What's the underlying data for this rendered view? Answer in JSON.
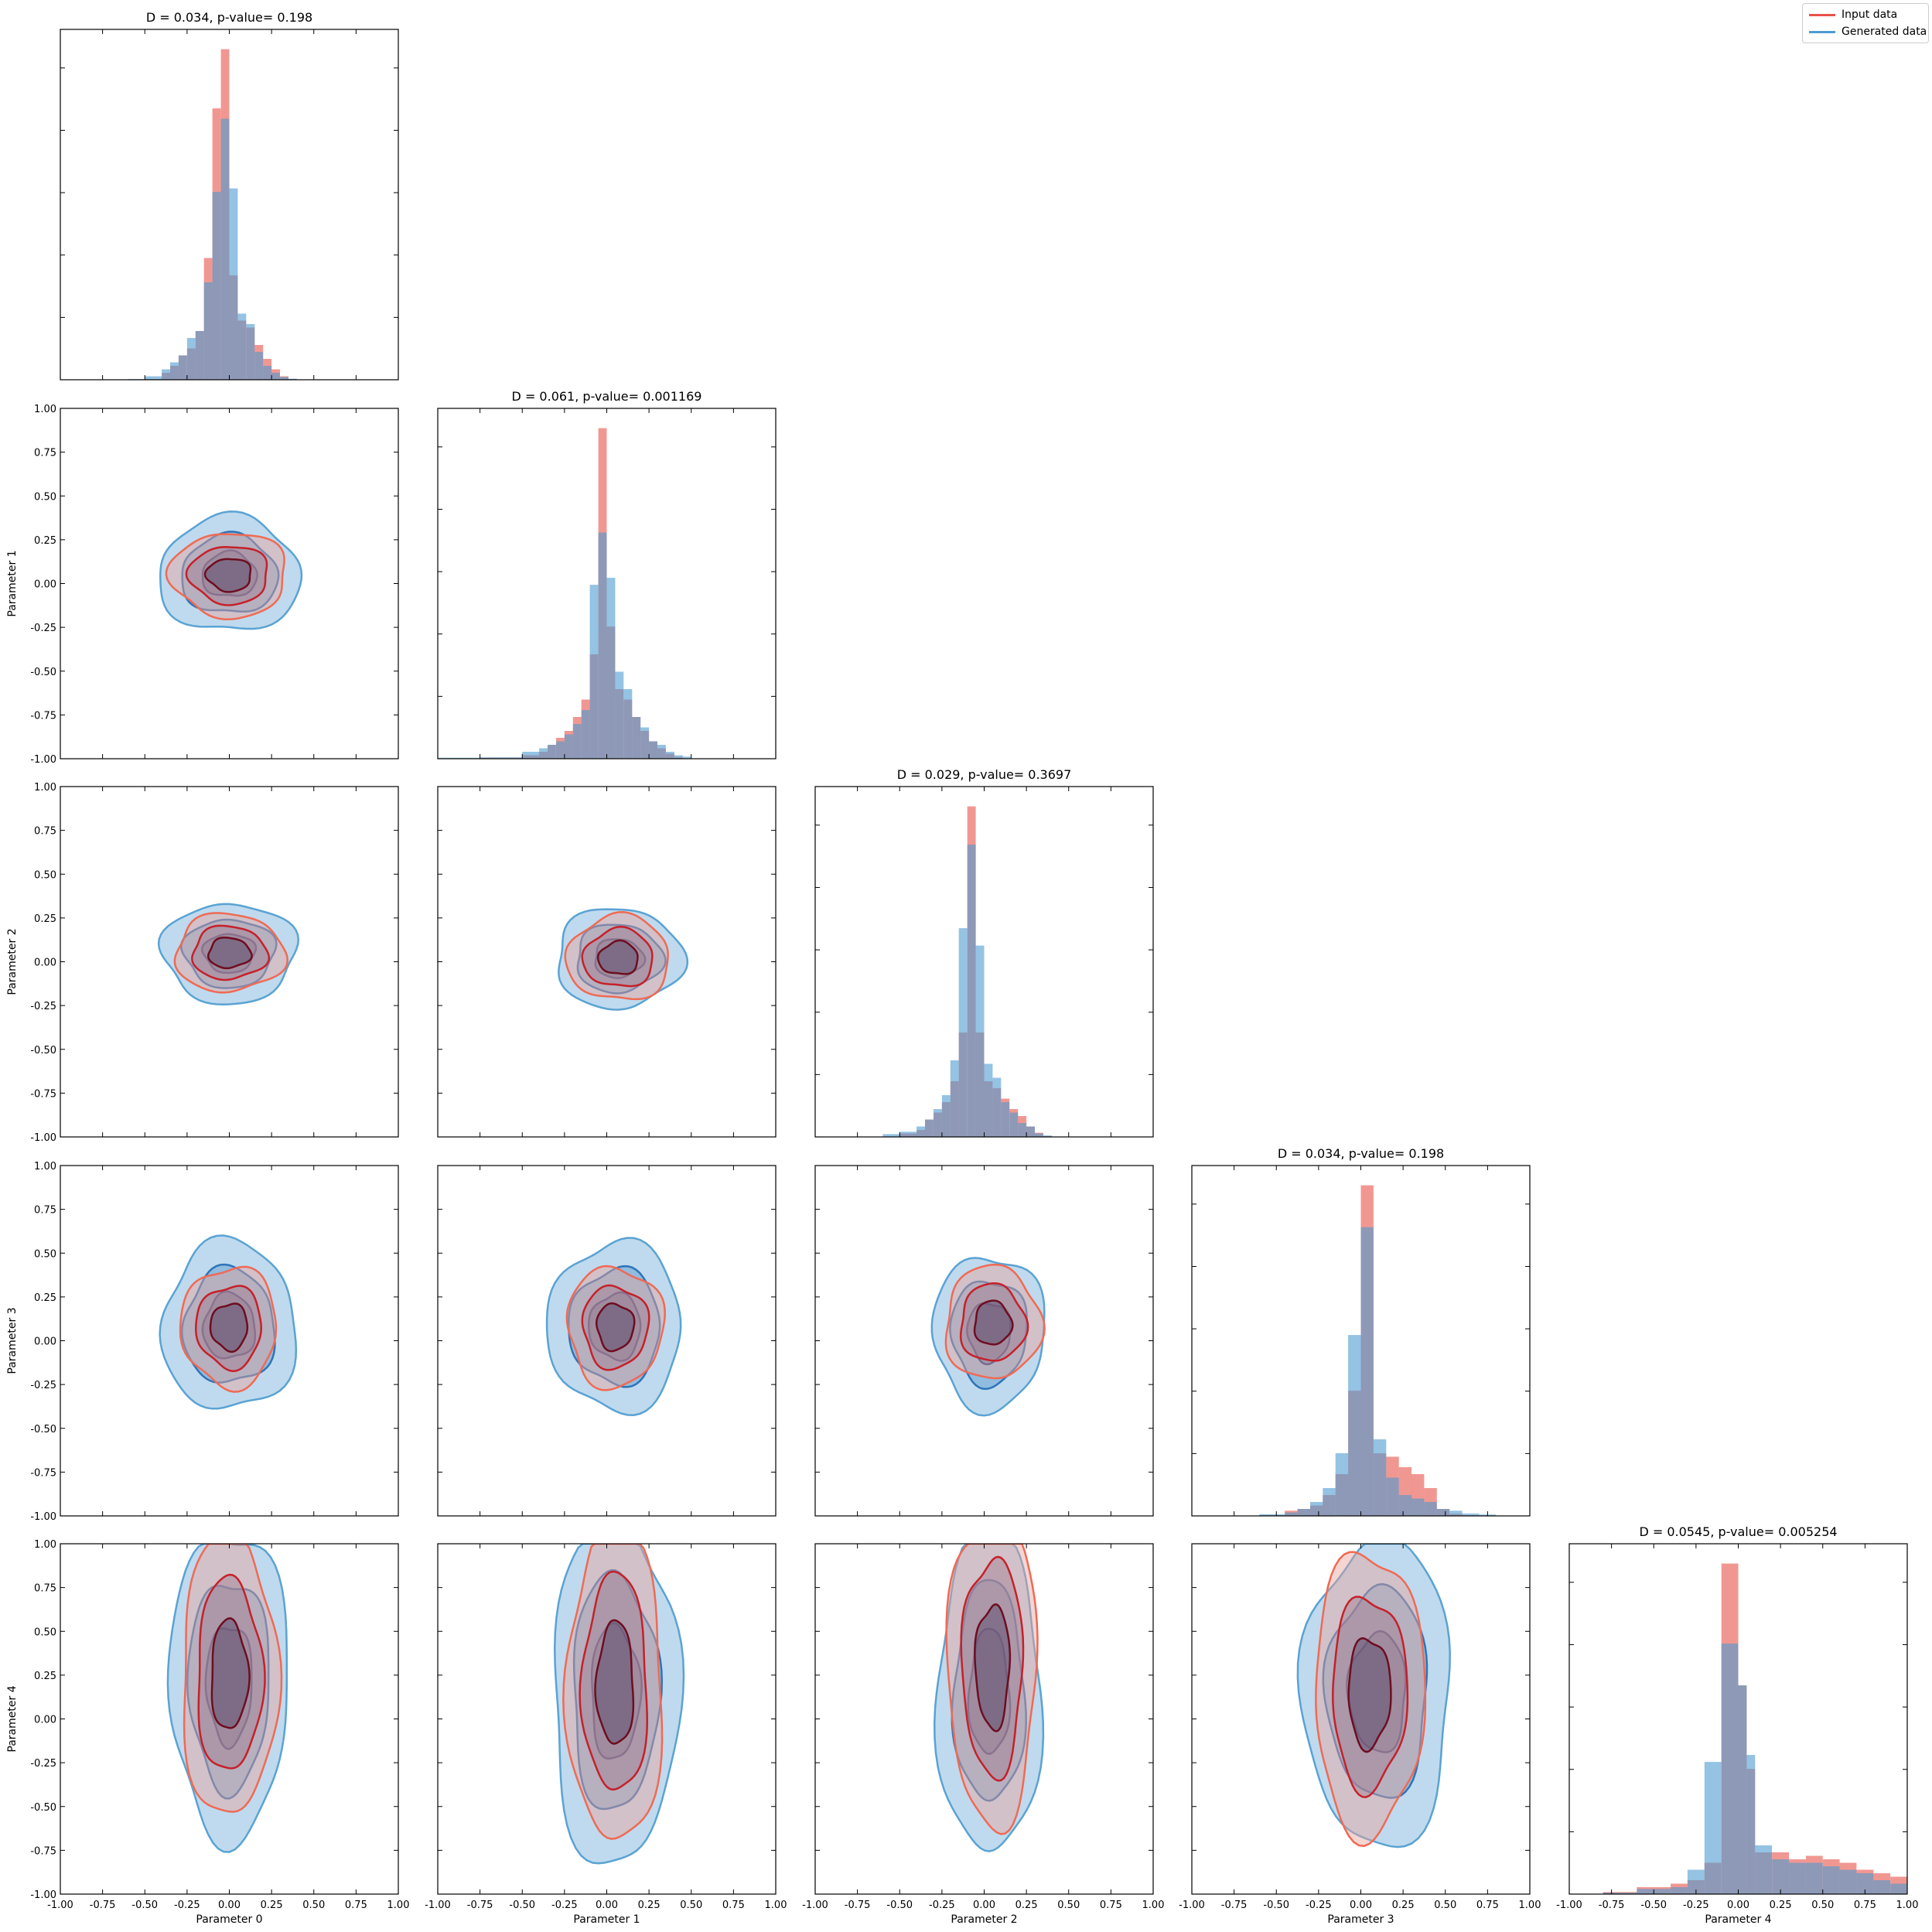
{
  "legend": {
    "input_label": "Input data",
    "generated_label": "Generated data"
  },
  "colors": {
    "input": "#e8514a",
    "input_fill": "#e88a86",
    "generated": "#4d9bd1",
    "generated_fill": "#7fb6dc",
    "overlap": "#85779a"
  },
  "axis": {
    "range": [
      -1.0,
      1.0
    ],
    "ticks": [
      "-1.00",
      "-0.75",
      "-0.50",
      "-0.25",
      "0.00",
      "0.25",
      "0.50",
      "0.75",
      "1.00"
    ]
  },
  "chart_data": {
    "type": "corner",
    "parameters": [
      "Parameter 0",
      "Parameter 1",
      "Parameter 2",
      "Parameter 3",
      "Parameter 4"
    ],
    "diagonal": [
      {
        "title": "D = 0.034, p-value= 0.198",
        "type": "bar",
        "bin_edges": [
          -0.6,
          -0.5,
          -0.4,
          -0.35,
          -0.3,
          -0.25,
          -0.2,
          -0.15,
          -0.1,
          -0.05,
          0.0,
          0.05,
          0.1,
          0.15,
          0.2,
          0.25,
          0.3,
          0.35,
          0.4,
          0.45,
          0.5,
          0.6,
          0.7
        ],
        "series": [
          {
            "name": "Input data",
            "values": [
              0.0,
              0.002,
              0.02,
              0.04,
              0.07,
              0.09,
              0.14,
              0.35,
              0.78,
              0.95,
              0.3,
              0.17,
              0.15,
              0.1,
              0.06,
              0.03,
              0.01,
              0.002,
              0.0,
              0.0,
              0.0,
              0.0
            ]
          },
          {
            "name": "Generated data",
            "values": [
              0.002,
              0.01,
              0.03,
              0.05,
              0.07,
              0.12,
              0.14,
              0.28,
              0.54,
              0.75,
              0.55,
              0.19,
              0.16,
              0.08,
              0.04,
              0.02,
              0.008,
              0.003,
              0.001,
              0.0,
              0.001,
              0.0
            ]
          }
        ]
      },
      {
        "title": "D = 0.061, p-value= 0.001169",
        "type": "bar",
        "bin_edges": [
          -1.0,
          -0.75,
          -0.5,
          -0.4,
          -0.35,
          -0.3,
          -0.25,
          -0.2,
          -0.15,
          -0.1,
          -0.05,
          0.0,
          0.05,
          0.1,
          0.15,
          0.2,
          0.25,
          0.3,
          0.35,
          0.4,
          0.45,
          0.5,
          0.6
        ],
        "series": [
          {
            "name": "Input data",
            "values": [
              0.0,
              0.003,
              0.01,
              0.02,
              0.04,
              0.06,
              0.08,
              0.12,
              0.17,
              0.3,
              0.95,
              0.38,
              0.2,
              0.17,
              0.12,
              0.08,
              0.05,
              0.03,
              0.015,
              0.005,
              0.0,
              0.0
            ]
          },
          {
            "name": "Generated data",
            "values": [
              0.003,
              0.004,
              0.02,
              0.03,
              0.04,
              0.05,
              0.07,
              0.1,
              0.14,
              0.5,
              0.65,
              0.52,
              0.25,
              0.2,
              0.12,
              0.09,
              0.05,
              0.04,
              0.02,
              0.01,
              0.006,
              0.0
            ]
          }
        ]
      },
      {
        "title": "D = 0.029, p-value= 0.3697",
        "type": "bar",
        "bin_edges": [
          -0.6,
          -0.5,
          -0.4,
          -0.35,
          -0.3,
          -0.25,
          -0.2,
          -0.15,
          -0.1,
          -0.05,
          0.0,
          0.05,
          0.1,
          0.15,
          0.2,
          0.25,
          0.3,
          0.35,
          0.4,
          0.45,
          0.5,
          0.6
        ],
        "series": [
          {
            "name": "Input data",
            "values": [
              0.0,
              0.01,
              0.02,
              0.05,
              0.07,
              0.1,
              0.16,
              0.3,
              0.95,
              0.3,
              0.16,
              0.14,
              0.11,
              0.08,
              0.06,
              0.03,
              0.012,
              0.003,
              0.0,
              0.0,
              0.0
            ]
          },
          {
            "name": "Generated data",
            "values": [
              0.008,
              0.015,
              0.03,
              0.05,
              0.08,
              0.12,
              0.22,
              0.6,
              0.84,
              0.55,
              0.21,
              0.17,
              0.1,
              0.07,
              0.04,
              0.03,
              0.01,
              0.004,
              0.0,
              0.0,
              0.0
            ]
          }
        ]
      },
      {
        "title": "D = 0.034, p-value= 0.198",
        "type": "bar",
        "bin_edges": [
          -0.6,
          -0.45,
          -0.375,
          -0.3,
          -0.225,
          -0.15,
          -0.075,
          0.0,
          0.075,
          0.15,
          0.225,
          0.3,
          0.375,
          0.45,
          0.525,
          0.6,
          0.7,
          0.8
        ],
        "series": [
          {
            "name": "Input data",
            "values": [
              0.002,
              0.015,
              0.02,
              0.03,
              0.06,
              0.12,
              0.36,
              0.95,
              0.18,
              0.17,
              0.14,
              0.12,
              0.08,
              0.02,
              0.006,
              0.002,
              0.0
            ]
          },
          {
            "name": "Generated data",
            "values": [
              0.005,
              0.01,
              0.02,
              0.04,
              0.08,
              0.18,
              0.52,
              0.83,
              0.22,
              0.11,
              0.06,
              0.05,
              0.04,
              0.02,
              0.015,
              0.007,
              0.004
            ]
          }
        ]
      },
      {
        "title": "D = 0.0545, p-value= 0.005254",
        "type": "bar",
        "bin_edges": [
          -1.0,
          -0.8,
          -0.6,
          -0.4,
          -0.3,
          -0.2,
          -0.1,
          0.0,
          0.05,
          0.1,
          0.2,
          0.3,
          0.4,
          0.5,
          0.6,
          0.7,
          0.8,
          0.9,
          1.0
        ],
        "series": [
          {
            "name": "Input data",
            "values": [
              0.0,
              0.006,
              0.02,
              0.03,
              0.04,
              0.09,
              0.95,
              0.6,
              0.36,
              0.12,
              0.12,
              0.1,
              0.11,
              0.1,
              0.09,
              0.07,
              0.06,
              0.05
            ]
          },
          {
            "name": "Generated data",
            "values": [
              0.0,
              0.004,
              0.015,
              0.02,
              0.07,
              0.38,
              0.72,
              0.6,
              0.4,
              0.14,
              0.1,
              0.09,
              0.09,
              0.08,
              0.07,
              0.06,
              0.04,
              0.03
            ]
          }
        ]
      }
    ],
    "off_diagonal": [
      {
        "row": 1,
        "col": 0,
        "input": {
          "center": [
            0.0,
            0.05
          ],
          "sigma": [
            0.17,
            0.12
          ]
        },
        "generated": {
          "center": [
            0.0,
            0.05
          ],
          "sigma": [
            0.19,
            0.15
          ]
        }
      },
      {
        "row": 2,
        "col": 0,
        "input": {
          "center": [
            0.0,
            0.05
          ],
          "sigma": [
            0.16,
            0.11
          ]
        },
        "generated": {
          "center": [
            0.0,
            0.05
          ],
          "sigma": [
            0.18,
            0.13
          ]
        }
      },
      {
        "row": 2,
        "col": 1,
        "input": {
          "center": [
            0.07,
            0.02
          ],
          "sigma": [
            0.15,
            0.12
          ]
        },
        "generated": {
          "center": [
            0.07,
            0.02
          ],
          "sigma": [
            0.17,
            0.13
          ]
        }
      },
      {
        "row": 3,
        "col": 0,
        "input": {
          "center": [
            0.0,
            0.08
          ],
          "sigma": [
            0.14,
            0.17
          ]
        },
        "generated": {
          "center": [
            0.0,
            0.08
          ],
          "sigma": [
            0.18,
            0.22
          ]
        }
      },
      {
        "row": 3,
        "col": 1,
        "input": {
          "center": [
            0.05,
            0.08
          ],
          "sigma": [
            0.14,
            0.17
          ]
        },
        "generated": {
          "center": [
            0.05,
            0.08
          ],
          "sigma": [
            0.18,
            0.22
          ]
        }
      },
      {
        "row": 3,
        "col": 2,
        "input": {
          "center": [
            0.05,
            0.1
          ],
          "sigma": [
            0.14,
            0.16
          ]
        },
        "generated": {
          "center": [
            0.03,
            0.05
          ],
          "sigma": [
            0.15,
            0.2
          ]
        }
      },
      {
        "row": 4,
        "col": 0,
        "input": {
          "center": [
            0.0,
            0.25
          ],
          "sigma": [
            0.14,
            0.4
          ]
        },
        "generated": {
          "center": [
            0.0,
            0.2
          ],
          "sigma": [
            0.16,
            0.4
          ]
        }
      },
      {
        "row": 4,
        "col": 1,
        "input": {
          "center": [
            0.05,
            0.2
          ],
          "sigma": [
            0.14,
            0.45
          ]
        },
        "generated": {
          "center": [
            0.05,
            0.15
          ],
          "sigma": [
            0.17,
            0.45
          ]
        }
      },
      {
        "row": 4,
        "col": 2,
        "input": {
          "center": [
            0.05,
            0.3
          ],
          "sigma": [
            0.13,
            0.45
          ]
        },
        "generated": {
          "center": [
            0.03,
            0.15
          ],
          "sigma": [
            0.14,
            0.42
          ]
        }
      },
      {
        "row": 4,
        "col": 3,
        "input": {
          "center": [
            0.05,
            0.15
          ],
          "sigma": [
            0.16,
            0.4
          ]
        },
        "generated": {
          "center": [
            0.1,
            0.15
          ],
          "sigma": [
            0.2,
            0.4
          ]
        }
      }
    ],
    "xlim": [
      -1.0,
      1.0
    ],
    "ylim": [
      -1.0,
      1.0
    ],
    "legend_position": "top-right",
    "grid": false
  }
}
